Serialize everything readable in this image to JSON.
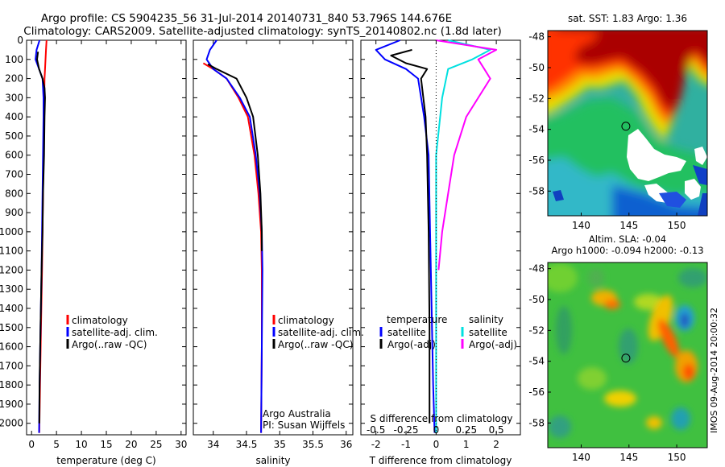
{
  "header": {
    "line1": "Argo profile: CS 5904235_56 31-Jul-2014 20140731_840 53.796S 144.676E",
    "line2": "Climatology: CARS2009. Satellite-adjusted climatology: synTS_20140802.nc (1.8d later)"
  },
  "chart_data": [
    {
      "type": "line",
      "panel": "temperature",
      "xlabel": "temperature (deg C)",
      "xlim": [
        -1,
        31
      ],
      "ylim": [
        2060,
        0
      ],
      "xticks": [
        0,
        5,
        10,
        15,
        20,
        25,
        30
      ],
      "yticks": [
        0,
        100,
        200,
        300,
        400,
        500,
        600,
        700,
        800,
        900,
        1000,
        1100,
        1200,
        1300,
        1400,
        1500,
        1600,
        1700,
        1800,
        1900,
        2000
      ],
      "legend": [
        "climatology",
        "satellite-adj. clim.",
        "Argo(..raw -QC)"
      ],
      "series": [
        {
          "name": "climatology",
          "color": "#ff0000",
          "x": [
            3.0,
            2.9,
            2.8,
            2.7,
            2.6,
            2.55,
            2.5,
            2.4,
            2.3,
            2.2,
            2.1,
            1.9,
            1.7,
            1.55
          ],
          "y": [
            0,
            50,
            100,
            150,
            200,
            300,
            400,
            600,
            800,
            1000,
            1200,
            1500,
            1800,
            2050
          ]
        },
        {
          "name": "satellite-adj. clim.",
          "color": "#0000ff",
          "x": [
            1.6,
            1.0,
            0.8,
            1.5,
            2.2,
            2.4,
            2.4,
            2.3,
            2.2,
            2.1,
            2.0,
            1.8,
            1.6,
            1.5
          ],
          "y": [
            0,
            50,
            100,
            150,
            200,
            300,
            400,
            600,
            800,
            1000,
            1200,
            1500,
            1800,
            2050
          ]
        },
        {
          "name": "Argo(..raw -QC)",
          "color": "#000000",
          "x": [
            1.3,
            1.1,
            1.5,
            2.2,
            2.6,
            2.7,
            2.6,
            2.5,
            2.3,
            2.2,
            2.0,
            1.8,
            1.6,
            1.55
          ],
          "y": [
            60,
            100,
            150,
            200,
            250,
            300,
            400,
            600,
            800,
            1000,
            1200,
            1500,
            1800,
            2000
          ]
        }
      ]
    },
    {
      "type": "line",
      "panel": "salinity",
      "xlabel": "salinity",
      "xlim": [
        33.7,
        36.1
      ],
      "ylim": [
        2060,
        0
      ],
      "xticks": [
        34,
        34.5,
        35,
        35.5,
        36
      ],
      "legend": [
        "climatology",
        "satellite-adj. clim.",
        "Argo(..raw -QC)"
      ],
      "annotation": [
        "Argo Australia",
        "PI: Susan Wijffels"
      ],
      "series": [
        {
          "name": "climatology",
          "color": "#ff0000",
          "x": [
            33.85,
            34.0,
            34.2,
            34.38,
            34.52,
            34.62,
            34.68,
            34.72,
            34.73,
            34.73,
            34.72
          ],
          "y": [
            120,
            150,
            200,
            300,
            400,
            600,
            800,
            1000,
            1200,
            1600,
            2050
          ]
        },
        {
          "name": "satellite-adj. clim.",
          "color": "#0000ff",
          "x": [
            34.05,
            33.95,
            33.9,
            34.0,
            34.2,
            34.4,
            34.55,
            34.64,
            34.7,
            34.73,
            34.74,
            34.73,
            34.72
          ],
          "y": [
            0,
            50,
            100,
            150,
            200,
            300,
            400,
            600,
            800,
            1000,
            1200,
            1600,
            2050
          ]
        },
        {
          "name": "Argo(..raw -QC)",
          "color": "#000000",
          "x": [
            33.92,
            34.05,
            34.35,
            34.5,
            34.6,
            34.67,
            34.71,
            34.73,
            34.73
          ],
          "y": [
            125,
            150,
            200,
            300,
            400,
            600,
            800,
            1000,
            1100
          ]
        }
      ]
    },
    {
      "type": "line",
      "panel": "difference",
      "xlabel": "T difference from climatology",
      "xlabel_top": "S difference from climatology",
      "xlim": [
        -2.5,
        2.8
      ],
      "ylim": [
        2060,
        0
      ],
      "xticks": [
        -2,
        -1,
        0,
        1,
        2
      ],
      "xticks_s": [
        -0.5,
        -0.25,
        0,
        0.25,
        0.5
      ],
      "legend_temp_title": "temperature",
      "legend_sal_title": "salinity",
      "legend_temp": [
        "satellite",
        "Argo(-adj)"
      ],
      "legend_sal": [
        "satellite",
        "Argo(-adj)"
      ],
      "series": [
        {
          "name": "satellite",
          "group": "temperature",
          "color": "#0000ff",
          "x": [
            -1.2,
            -2.0,
            -1.7,
            -1.0,
            -0.6,
            -0.4,
            -0.25,
            -0.2,
            -0.15,
            -0.1,
            -0.05
          ],
          "y": [
            0,
            50,
            100,
            150,
            200,
            400,
            600,
            1000,
            1400,
            1800,
            2050
          ]
        },
        {
          "name": "Argo(-adj)",
          "group": "temperature",
          "color": "#000000",
          "x": [
            -0.8,
            -1.5,
            -1.0,
            -0.3,
            -0.5,
            -0.35,
            -0.3,
            -0.25,
            -0.22,
            -0.22
          ],
          "y": [
            50,
            80,
            120,
            150,
            200,
            400,
            600,
            1000,
            1500,
            2000
          ]
        },
        {
          "name": "satellite",
          "group": "salinity",
          "color": "#00e0e0",
          "x": [
            0.1,
            0.45,
            0.3,
            0.1,
            0.05,
            0.0,
            0.0,
            0.0,
            0.0
          ],
          "y": [
            0,
            50,
            100,
            150,
            300,
            600,
            1000,
            1500,
            2050
          ]
        },
        {
          "name": "Argo(-adj)",
          "group": "salinity",
          "color": "#ff00ff",
          "x": [
            0.0,
            0.5,
            0.35,
            0.4,
            0.45,
            0.35,
            0.25,
            0.15,
            0.1,
            0.05,
            0.02
          ],
          "y": [
            0,
            50,
            100,
            150,
            200,
            300,
            400,
            600,
            800,
            1000,
            1200
          ]
        }
      ]
    }
  ],
  "map_sst": {
    "title": "sat. SST: 1.83 Argo: 1.36",
    "xticks": [
      "140",
      "145",
      "150"
    ],
    "yticks": [
      "-48",
      "-50",
      "-52",
      "-54",
      "-56",
      "-58"
    ],
    "marker": {
      "lon": 144.676,
      "lat": -53.796
    }
  },
  "map_sla": {
    "title1": "Altim. SLA: -0.04",
    "title2": "Argo h1000: -0.094 h2000: -0.13",
    "xticks": [
      "140",
      "145",
      "150"
    ],
    "yticks": [
      "-48",
      "-50",
      "-52",
      "-54",
      "-56",
      "-58"
    ],
    "marker": {
      "lon": 144.676,
      "lat": -53.796
    },
    "side_label": "IMOS 09-Aug-2014 20:00:32"
  }
}
